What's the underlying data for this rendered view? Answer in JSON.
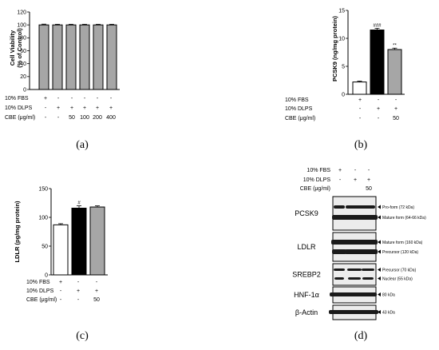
{
  "chart_data": [
    {
      "type": "bar",
      "panel_label": "(a)",
      "ylabel": "Cell Viability\n(% of Control)",
      "ylim": [
        0,
        120
      ],
      "yticks": [
        "0",
        "20",
        "40",
        "60",
        "80",
        "100",
        "120"
      ],
      "values": [
        100,
        100,
        100,
        100,
        100,
        100
      ],
      "errors": [
        1.2,
        1.0,
        1.0,
        1.0,
        1.0,
        1.0
      ],
      "fills": [
        "#a6a6a6",
        "#a6a6a6",
        "#a6a6a6",
        "#a6a6a6",
        "#a6a6a6",
        "#a6a6a6"
      ],
      "significance": [
        "",
        "",
        "",
        "",
        "",
        ""
      ],
      "conditions": [
        {
          "label": "10% FBS",
          "cells": [
            "+",
            "-",
            "-",
            "-",
            "-",
            "-"
          ]
        },
        {
          "label": "10% DLPS",
          "cells": [
            "-",
            "+",
            "+",
            "+",
            "+",
            "+"
          ]
        },
        {
          "label": "CBE (μg/ml)",
          "cells": [
            "-",
            "-",
            "50",
            "100",
            "200",
            "400"
          ]
        }
      ]
    },
    {
      "type": "bar",
      "panel_label": "(b)",
      "ylabel": "PCSK9 (ng/mg protein)",
      "ylim": [
        0,
        15
      ],
      "yticks": [
        "0",
        "5",
        "10",
        "15"
      ],
      "values": [
        2.2,
        11.5,
        8.0
      ],
      "errors": [
        0.15,
        0.3,
        0.25
      ],
      "fills": [
        "#ffffff",
        "#000000",
        "#a6a6a6"
      ],
      "significance": [
        "",
        "###",
        "**"
      ],
      "conditions": [
        {
          "label": "10% FBS",
          "cells": [
            "+",
            "-",
            "-"
          ]
        },
        {
          "label": "10% DLPS",
          "cells": [
            "-",
            "+",
            "+"
          ]
        },
        {
          "label": "CBE (μg/ml)",
          "cells": [
            "-",
            "-",
            "50"
          ]
        }
      ]
    },
    {
      "type": "bar",
      "panel_label": "(c)",
      "ylabel": "LDLR (pg/mg protein)",
      "ylim": [
        0,
        150
      ],
      "yticks": [
        "0",
        "50",
        "100",
        "150"
      ],
      "values": [
        87,
        116,
        118
      ],
      "errors": [
        2,
        4,
        2
      ],
      "fills": [
        "#ffffff",
        "#000000",
        "#a6a6a6"
      ],
      "significance": [
        "",
        "#",
        ""
      ],
      "conditions": [
        {
          "label": "10% FBS",
          "cells": [
            "+",
            "-",
            "-"
          ]
        },
        {
          "label": "10% DLPS",
          "cells": [
            "-",
            "+",
            "+"
          ]
        },
        {
          "label": "CBE (μg/ml)",
          "cells": [
            "-",
            "-",
            "50"
          ]
        }
      ]
    }
  ],
  "western_blot": {
    "panel_label": "(d)",
    "conditions": [
      {
        "label": "10% FBS",
        "cells": [
          "+",
          "-",
          "-"
        ]
      },
      {
        "label": "10% DLPS",
        "cells": [
          "-",
          "+",
          "+"
        ]
      },
      {
        "label": "CBE (μg/ml)",
        "cells": [
          "",
          "",
          "50"
        ]
      }
    ],
    "blots": [
      {
        "name": "PCSK9",
        "annotations": [
          "Pro-form (72 kDa)",
          "Mature form (64-66 kDa)"
        ]
      },
      {
        "name": "LDLR",
        "annotations": [
          "Mature form (160 kDa)",
          "Precursor (120 kDa)"
        ]
      },
      {
        "name": "SREBP2",
        "annotations": [
          "Precursor (70 kDa)",
          "Nuclear (55 kDa)"
        ]
      },
      {
        "name": "HNF-1α",
        "annotations": [
          "80 kDa"
        ]
      },
      {
        "name": "β-Actin",
        "annotations": [
          "43 kDa"
        ]
      }
    ]
  }
}
